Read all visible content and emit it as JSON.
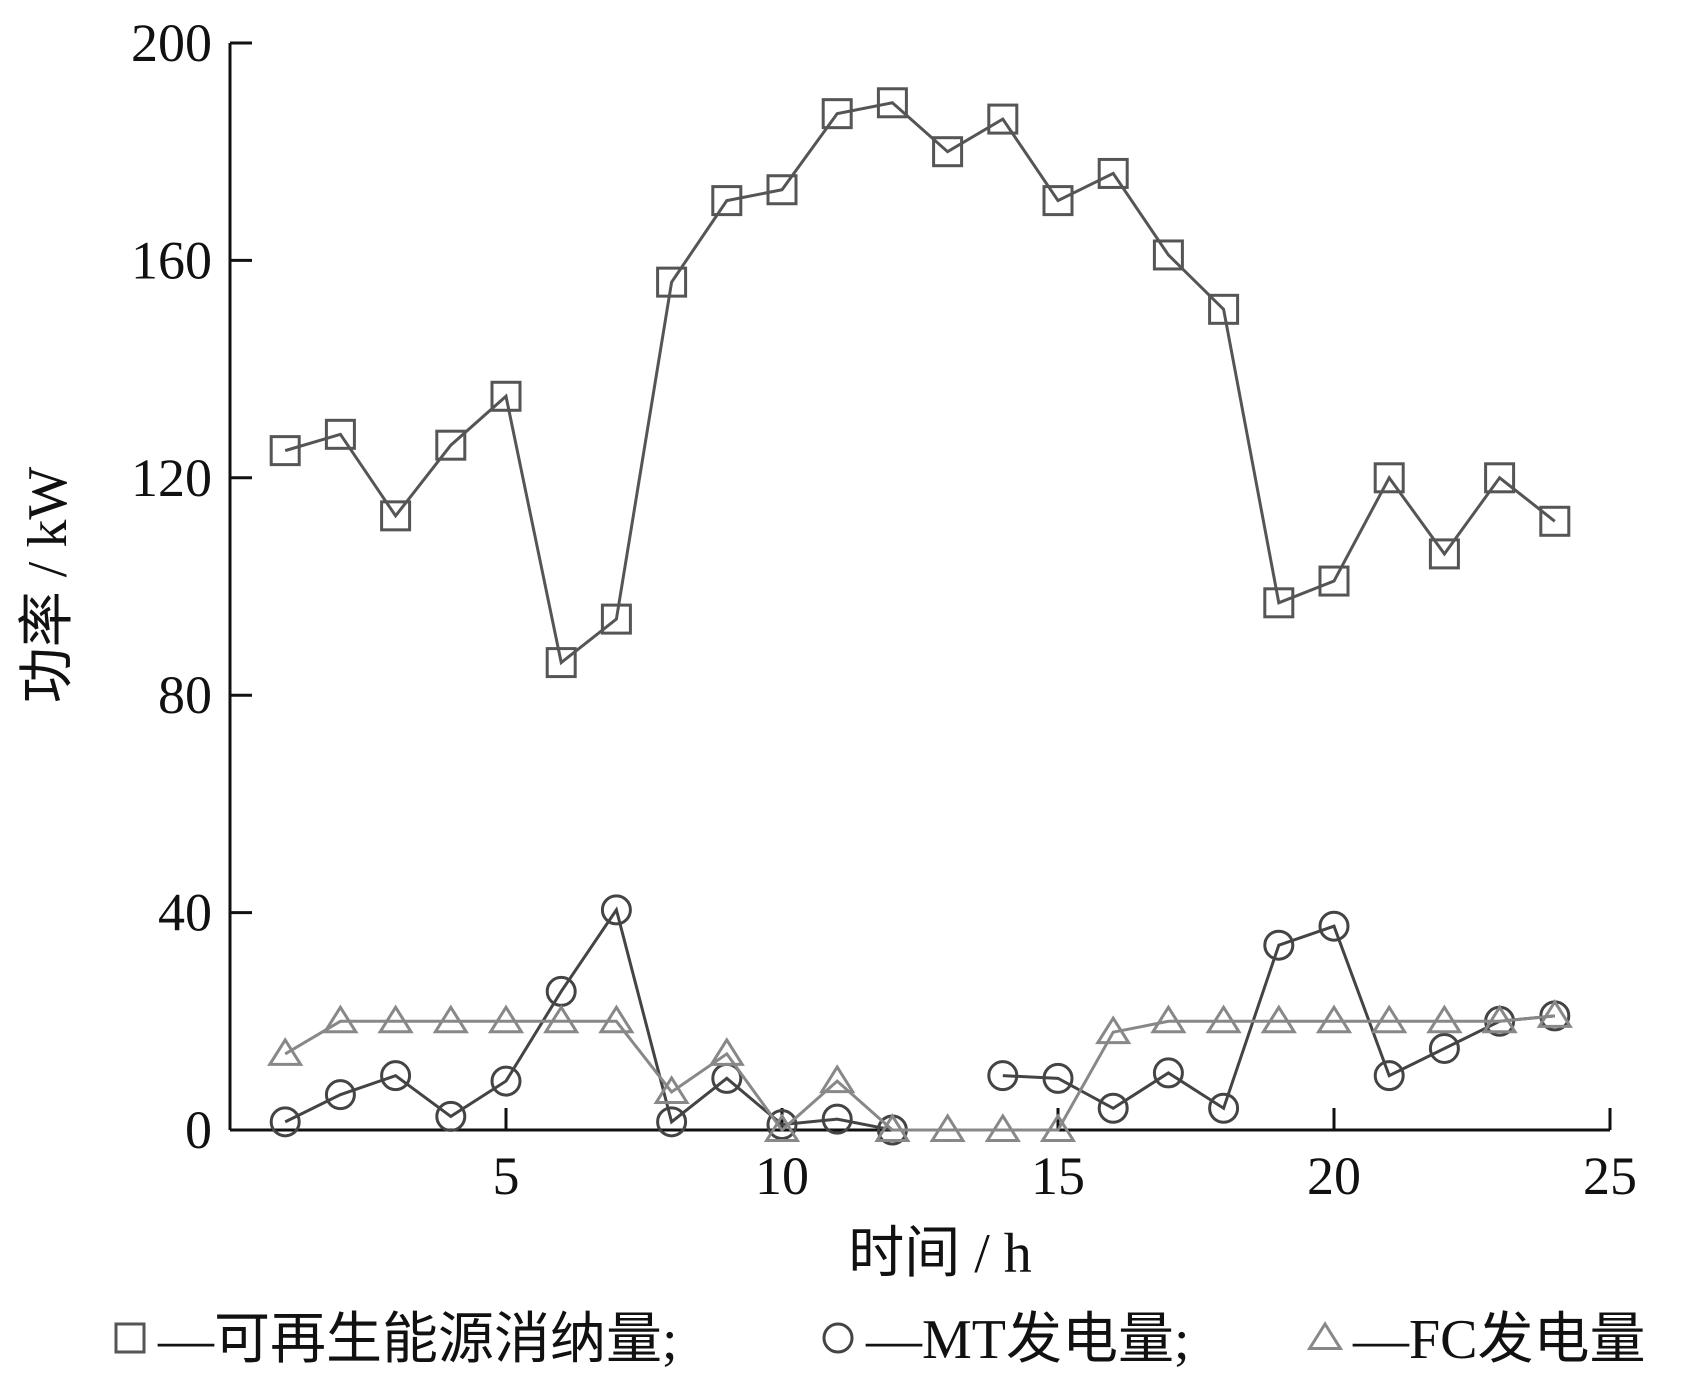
{
  "chart_data": {
    "type": "line",
    "title": "",
    "xlabel": "时间 / h",
    "ylabel": "功率 / kW",
    "xlim": [
      0,
      25
    ],
    "ylim": [
      0,
      200
    ],
    "xticks": [
      5,
      10,
      15,
      20,
      25
    ],
    "yticks": [
      0,
      40,
      80,
      120,
      160,
      200
    ],
    "grid": false,
    "legend_position": "bottom",
    "x": [
      1,
      2,
      3,
      4,
      5,
      6,
      7,
      8,
      9,
      10,
      11,
      12,
      13,
      14,
      15,
      16,
      17,
      18,
      19,
      20,
      21,
      22,
      23,
      24
    ],
    "series": [
      {
        "name": "可再生能源消纳量",
        "legend_label": "—可再生能源消纳量;",
        "marker": "square",
        "color": "#555555",
        "values": [
          125,
          128,
          113,
          126,
          135,
          86,
          94,
          156,
          171,
          173,
          187,
          189,
          180,
          186,
          171,
          176,
          161,
          151,
          97,
          101,
          120,
          106,
          120,
          112
        ]
      },
      {
        "name": "MT发电量",
        "legend_label": "—MT发电量;",
        "marker": "circle",
        "color": "#444444",
        "values": [
          1.5,
          6.5,
          10,
          2.5,
          9,
          25.5,
          40.5,
          1.5,
          9.5,
          1,
          2,
          0,
          null,
          10,
          9.5,
          4,
          10.5,
          4,
          34,
          37.5,
          10,
          15,
          20,
          21
        ]
      },
      {
        "name": "FC发电量",
        "legend_label": "—FC发电量",
        "marker": "triangle",
        "color": "#888888",
        "values": [
          14,
          20,
          20,
          20,
          20,
          20,
          20,
          7,
          14,
          0,
          9,
          0,
          0,
          0,
          0,
          18,
          20,
          20,
          20,
          20,
          20,
          20,
          20,
          21
        ]
      }
    ]
  }
}
